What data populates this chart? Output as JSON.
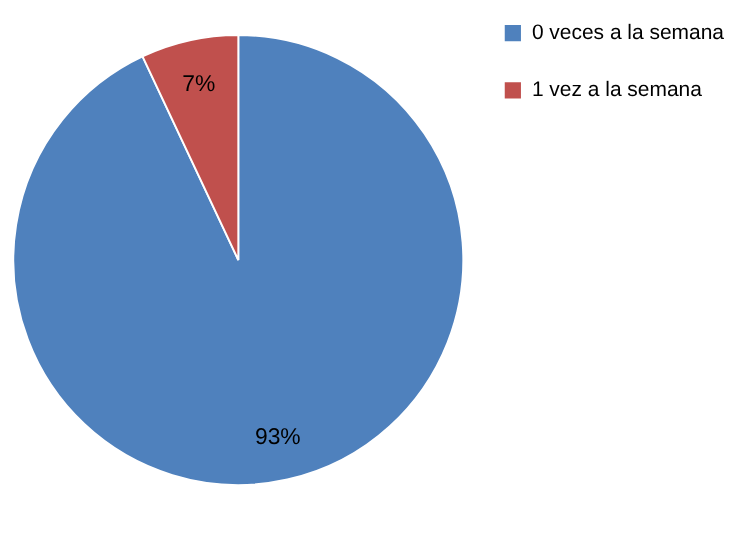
{
  "chart_data": {
    "type": "pie",
    "categories": [
      "0 veces a la semana",
      "1 vez a la semana"
    ],
    "values": [
      93,
      7
    ],
    "value_labels": [
      "93%",
      "7%"
    ],
    "colors": [
      "#4f81bd",
      "#c0504d"
    ],
    "legend": "right"
  }
}
